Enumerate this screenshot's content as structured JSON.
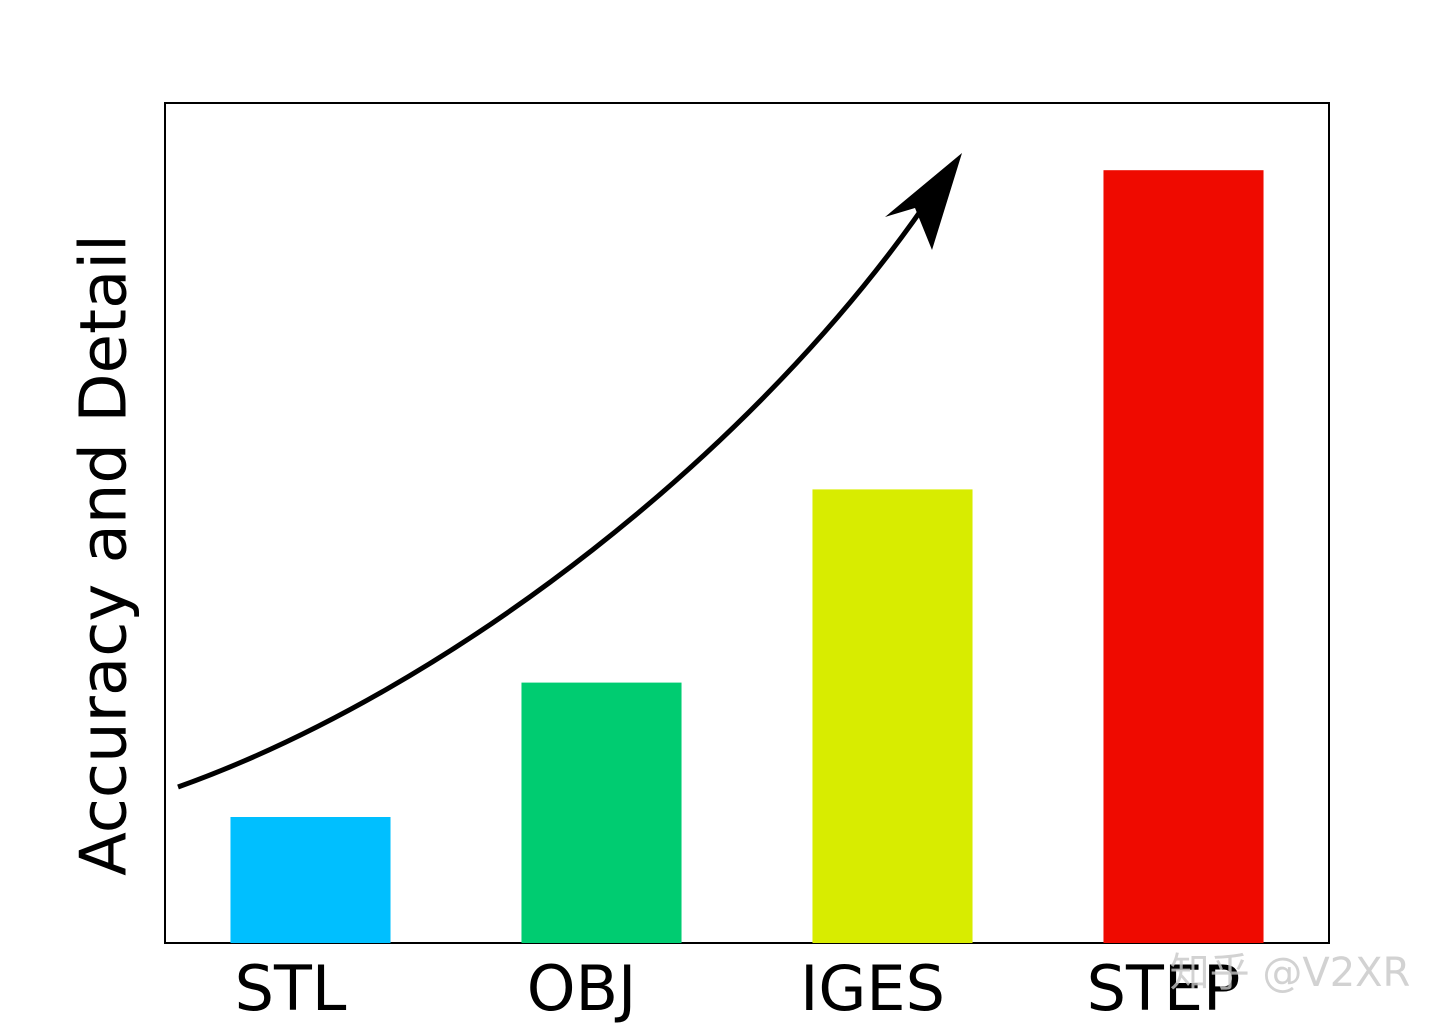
{
  "chart_data": {
    "type": "bar",
    "ylabel": "Accuracy and Detail",
    "categories": [
      "STL",
      "OBJ",
      "IGES",
      "STEP"
    ],
    "values": [
      15,
      31,
      54,
      92
    ],
    "colors": [
      "#00bfff",
      "#00cc71",
      "#d8ec00",
      "#ef0a00"
    ],
    "ylim": [
      0,
      100
    ],
    "watermark": "知乎 @V2XR"
  }
}
